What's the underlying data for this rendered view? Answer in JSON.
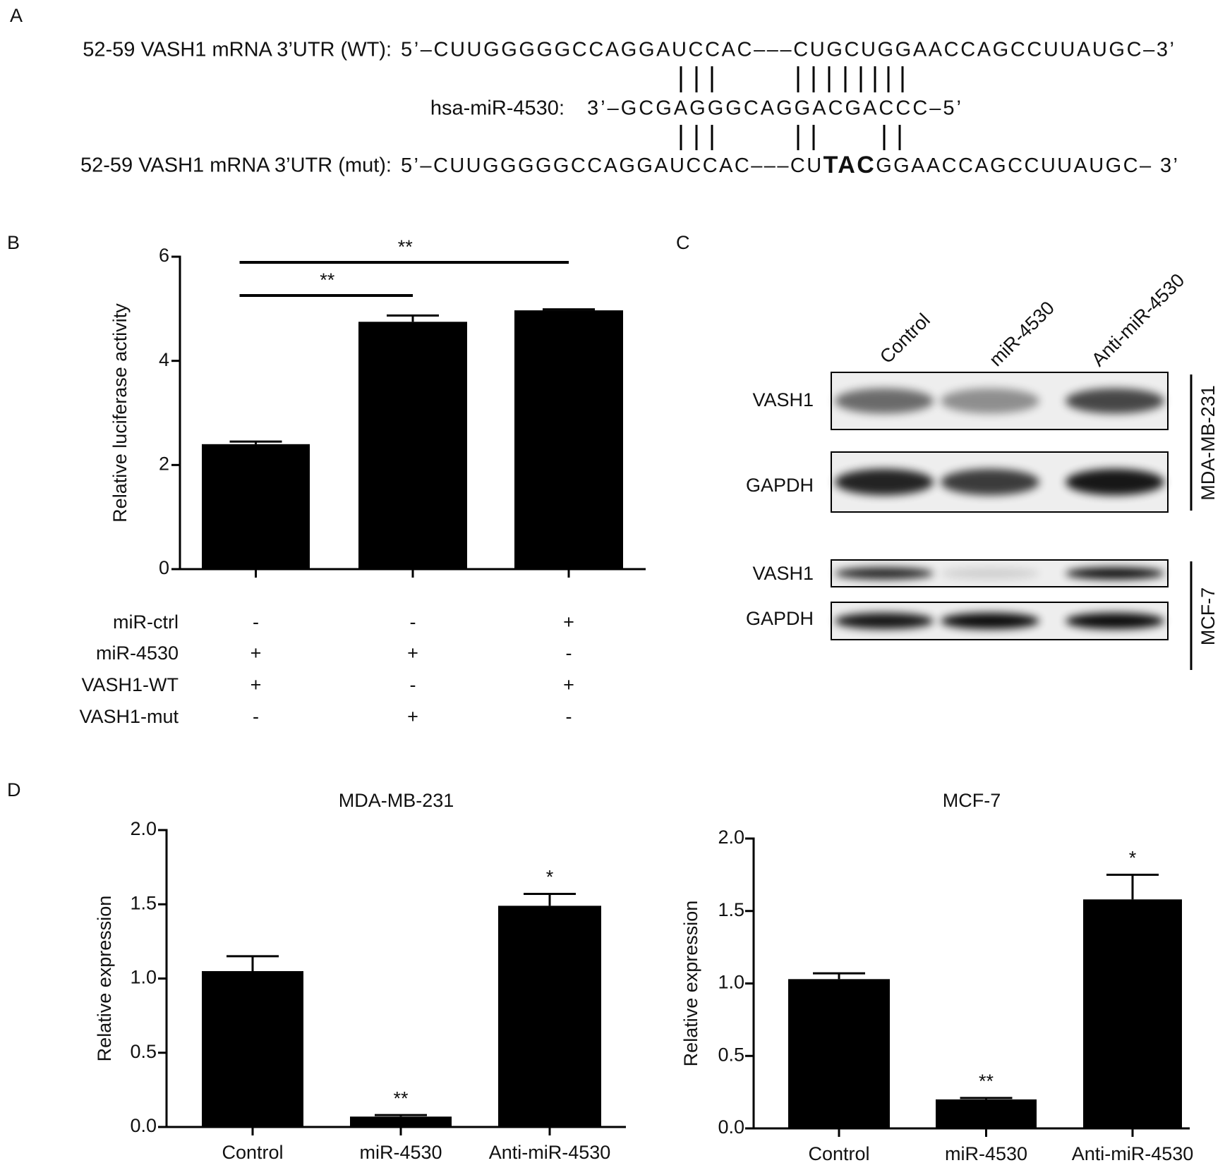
{
  "panels": {
    "a": "A",
    "b": "B",
    "c": "C",
    "d": "D"
  },
  "panel_a": {
    "wt_label": "52-59 VASH1 mRNA 3’UTR (WT):",
    "wt_seq": "5’–CUUGGGGGCCAGGAUCCAC–––CUGCUGGAACCAGCCUUAUGC–3’",
    "mirna_label": "hsa-miR-4530:",
    "mirna_seq": "3’–GCGAGGGCAGGACGACCC–5’",
    "mut_label": "52-59 VASH1 mRNA 3’UTR (mut):",
    "mut_seq": [
      "5’–CUUGGGGGCCAGGAUCCAC–––CU",
      "TAC",
      "GGAACCAGCCUUAUGC– 3’"
    ]
  },
  "panel_c": {
    "lanes": [
      "Control",
      "miR-4530",
      "Anti-miR-4530"
    ],
    "rows": [
      "VASH1",
      "GAPDH",
      "VASH1",
      "GAPDH"
    ],
    "cell_lines": [
      "MDA-MB-231",
      "MCF-7"
    ]
  },
  "chart_data": [
    {
      "type": "bar",
      "ylabel": "Relative luciferase activity",
      "categories": [
        null,
        null,
        null
      ],
      "values": [
        2.4,
        4.75,
        4.97
      ],
      "errors": [
        0.05,
        0.12,
        0.02
      ],
      "color": "#000000",
      "ylim": [
        0,
        6
      ],
      "yticks": [
        0,
        2,
        4,
        6
      ],
      "annotations": [
        "**",
        "**"
      ],
      "conditions": [
        {
          "name": "miR-ctrl",
          "signs": [
            "-",
            "-",
            "+"
          ]
        },
        {
          "name": "miR-4530",
          "signs": [
            "+",
            "+",
            "-"
          ]
        },
        {
          "name": "VASH1-WT",
          "signs": [
            "+",
            "-",
            "+"
          ]
        },
        {
          "name": "VASH1-mut",
          "signs": [
            "-",
            "+",
            "-"
          ]
        }
      ]
    },
    {
      "type": "bar",
      "title": "MDA-MB-231",
      "ylabel": "Relative expression",
      "categories": [
        "Control",
        "miR-4530",
        "Anti-miR-4530"
      ],
      "values": [
        1.05,
        0.07,
        1.49
      ],
      "errors": [
        0.1,
        0.01,
        0.08
      ],
      "color": "#000000",
      "ylim": [
        0,
        2
      ],
      "yticks": [
        {
          "value": 0,
          "label": "0.0"
        },
        0.5,
        {
          "value": 1,
          "label": "1.0"
        },
        1.5,
        {
          "value": 2,
          "label": "2.0"
        }
      ],
      "annotations": [
        null,
        "**",
        "*"
      ]
    },
    {
      "type": "bar",
      "title": "MCF-7",
      "ylabel": "Relative expression",
      "categories": [
        "Control",
        "miR-4530",
        "Anti-miR-4530"
      ],
      "values": [
        1.03,
        0.2,
        1.58
      ],
      "errors": [
        0.04,
        0.01,
        0.17
      ],
      "color": "#000000",
      "ylim": [
        0,
        2
      ],
      "yticks": [
        {
          "value": 0,
          "label": "0.0"
        },
        0.5,
        {
          "value": 1,
          "label": "1.0"
        },
        1.5,
        {
          "value": 2,
          "label": "2.0"
        }
      ],
      "annotations": [
        null,
        "**",
        "*"
      ]
    }
  ]
}
